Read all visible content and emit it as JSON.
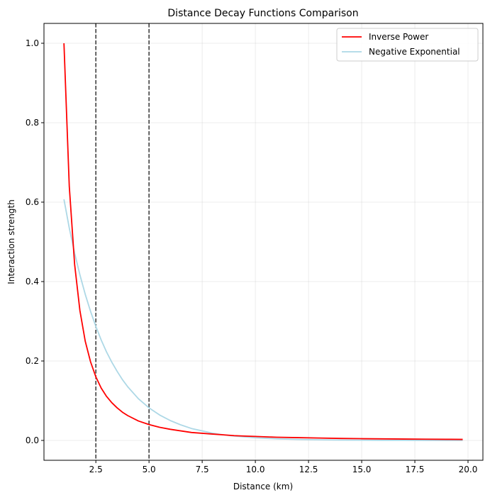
{
  "chart_data": {
    "type": "line",
    "title": "Distance Decay Functions Comparison",
    "xlabel": "Distance (km)",
    "ylabel": "Interaction strength",
    "xlim": [
      0.06,
      20.7
    ],
    "ylim": [
      -0.05,
      1.05
    ],
    "xticks": [
      2.5,
      5.0,
      7.5,
      10.0,
      12.5,
      15.0,
      17.5,
      20.0
    ],
    "xtick_labels": [
      "2.5",
      "5.0",
      "7.5",
      "10.0",
      "12.5",
      "15.0",
      "17.5",
      "20.0"
    ],
    "yticks": [
      0.0,
      0.2,
      0.4,
      0.6,
      0.8,
      1.0
    ],
    "ytick_labels": [
      "0.0",
      "0.2",
      "0.4",
      "0.6",
      "0.8",
      "1.0"
    ],
    "grid": true,
    "legend_position": "top-right",
    "vertical_lines": [
      {
        "x": 2.5,
        "color": "#333333",
        "style": "dashed"
      },
      {
        "x": 5.0,
        "color": "#333333",
        "style": "dashed"
      }
    ],
    "series": [
      {
        "name": "Inverse Power",
        "color": "#ff0000",
        "x": [
          1.0,
          1.25,
          1.5,
          1.75,
          2.0,
          2.25,
          2.5,
          2.75,
          3.0,
          3.25,
          3.5,
          3.75,
          4.0,
          4.5,
          5.0,
          5.5,
          6.0,
          6.5,
          7.0,
          7.5,
          8.0,
          8.5,
          9.0,
          9.5,
          10.0,
          11.0,
          12.0,
          13.0,
          14.0,
          15.0,
          16.0,
          17.0,
          18.0,
          19.0,
          19.75
        ],
        "y": [
          1.0,
          0.64,
          0.444,
          0.327,
          0.25,
          0.198,
          0.16,
          0.132,
          0.111,
          0.095,
          0.082,
          0.071,
          0.0625,
          0.049,
          0.04,
          0.033,
          0.028,
          0.024,
          0.02,
          0.018,
          0.016,
          0.014,
          0.012,
          0.011,
          0.01,
          0.008,
          0.007,
          0.006,
          0.005,
          0.0044,
          0.0039,
          0.0035,
          0.0031,
          0.0028,
          0.0026
        ]
      },
      {
        "name": "Negative Exponential",
        "color": "#add8e6",
        "x": [
          1.0,
          1.25,
          1.5,
          1.75,
          2.0,
          2.25,
          2.5,
          2.75,
          3.0,
          3.25,
          3.5,
          3.75,
          4.0,
          4.5,
          5.0,
          5.5,
          6.0,
          6.5,
          7.0,
          7.5,
          8.0,
          8.5,
          9.0,
          9.5,
          10.0,
          11.0,
          12.0,
          13.0,
          14.0,
          15.0,
          16.0,
          17.0,
          18.0,
          19.0,
          19.75
        ],
        "y": [
          0.607,
          0.535,
          0.472,
          0.417,
          0.368,
          0.325,
          0.287,
          0.253,
          0.223,
          0.197,
          0.174,
          0.153,
          0.135,
          0.105,
          0.082,
          0.064,
          0.05,
          0.039,
          0.03,
          0.024,
          0.018,
          0.014,
          0.011,
          0.009,
          0.0067,
          0.0041,
          0.0025,
          0.0015,
          0.0009,
          0.0006,
          0.0003,
          0.0002,
          0.0001,
          0.0001,
          0.0001
        ]
      }
    ]
  }
}
